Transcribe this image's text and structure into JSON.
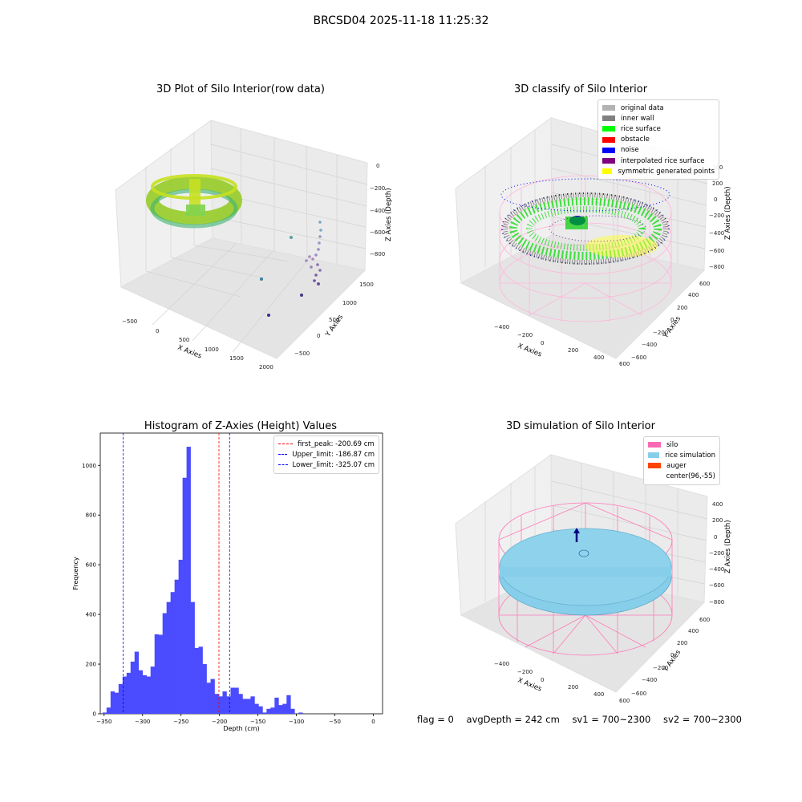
{
  "suptitle": "BRCSD04 2025-11-18 11:25:32",
  "footer": {
    "flag": "flag = 0",
    "avg": "avgDepth = 242 cm",
    "sv1": "sv1 = 700~2300",
    "sv2": "sv2 = 700~2300"
  },
  "chart_data": [
    {
      "type": "scatter",
      "title": "3D Plot of Silo Interior(row data)",
      "xlabel": "X Axies",
      "ylabel": "Y Axies",
      "zlabel": "Z Axies (Depth)",
      "x_ticks": [
        "−500",
        "0",
        "500",
        "1000",
        "1500",
        "2000"
      ],
      "y_ticks": [
        "−500",
        "0",
        "500",
        "1000",
        "1500"
      ],
      "z_ticks": [
        "0",
        "−200",
        "−400",
        "−600",
        "−800"
      ],
      "grid": true
    },
    {
      "type": "scatter",
      "title": "3D classify of Silo Interior",
      "xlabel": "X Axies",
      "ylabel": "Y Axies",
      "zlabel": "Z Axies (Depth)",
      "x_ticks": [
        "−400",
        "−200",
        "0",
        "200",
        "400",
        "600"
      ],
      "y_ticks": [
        "−600",
        "−400",
        "−200",
        "0",
        "200",
        "400",
        "600"
      ],
      "z_ticks": [
        "200",
        "0",
        "−200",
        "−400",
        "−600",
        "−800"
      ],
      "legend": [
        {
          "label": "original data",
          "color": "#b3b3b3"
        },
        {
          "label": "inner wall",
          "color": "#808080"
        },
        {
          "label": "rice surface",
          "color": "#00ff00"
        },
        {
          "label": "obstacle",
          "color": "#ff0000"
        },
        {
          "label": "noise",
          "color": "#0000ff"
        },
        {
          "label": "interpolated rice surface",
          "color": "#800080"
        },
        {
          "label": "symmetric generated points",
          "color": "#ffff00"
        }
      ],
      "legend_position": "top-right",
      "grid": true
    },
    {
      "type": "bar",
      "title": "Histogram of Z-Axies (Height) Values",
      "xlabel": "Depth (cm)",
      "ylabel": "Frequency",
      "xlim": [
        -355,
        12
      ],
      "ylim": [
        0,
        1130
      ],
      "x_ticks": [
        -350,
        -300,
        -250,
        -200,
        -150,
        -100,
        -50,
        0
      ],
      "y_ticks": [
        0,
        200,
        400,
        600,
        800,
        1000
      ],
      "bin_start": -352,
      "bin_width": 5.2,
      "values": [
        5,
        25,
        90,
        85,
        120,
        150,
        165,
        210,
        250,
        175,
        155,
        150,
        190,
        320,
        318,
        405,
        450,
        490,
        540,
        620,
        950,
        1075,
        450,
        265,
        270,
        200,
        125,
        140,
        80,
        70,
        90,
        70,
        105,
        105,
        80,
        60,
        60,
        70,
        40,
        30,
        5,
        20,
        25,
        65,
        35,
        40,
        75,
        20,
        0,
        5
      ],
      "lines": [
        {
          "label": "first_peak: -200.69 cm",
          "x": -200.69,
          "color": "#ff0000"
        },
        {
          "label": "Upper_limit: -186.87 cm",
          "x": -186.87,
          "color": "#0000ff"
        },
        {
          "label": "Lower_limit: -325.07 cm",
          "x": -325.07,
          "color": "#0000ff"
        }
      ],
      "bar_color": "#4b4bff",
      "legend_position": "top-right"
    },
    {
      "type": "scatter",
      "title": "3D simulation of Silo Interior",
      "xlabel": "X Axies",
      "ylabel": "Y Axies",
      "zlabel": "Z Axies (Depth)",
      "x_ticks": [
        "−400",
        "−200",
        "0",
        "200",
        "400",
        "600"
      ],
      "y_ticks": [
        "−600",
        "−400",
        "−200",
        "0",
        "200",
        "400",
        "600"
      ],
      "z_ticks": [
        "400",
        "200",
        "0",
        "−200",
        "−400",
        "−600",
        "−800"
      ],
      "legend": [
        {
          "label": "silo",
          "color": "#ff69b4"
        },
        {
          "label": "rice simulation",
          "color": "#87ceeb"
        },
        {
          "label": "auger",
          "color": "#ff4500"
        },
        {
          "label": "center(96,-55)",
          "color": "none"
        }
      ],
      "legend_position": "top-right",
      "grid": true
    }
  ]
}
